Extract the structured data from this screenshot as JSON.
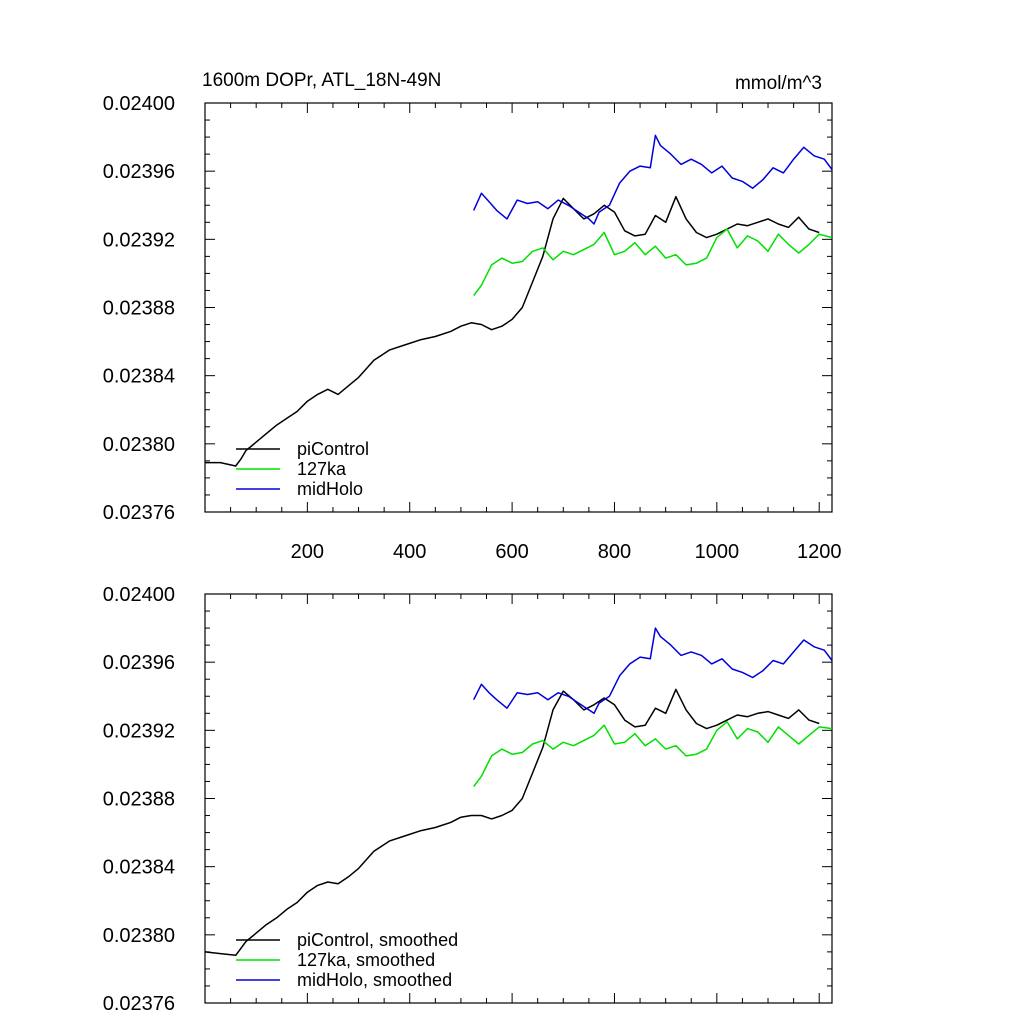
{
  "chart_data": [
    {
      "type": "line",
      "title": "1600m DOPr, ATL_18N-49N",
      "units": "mmol/m^3",
      "xlim": [
        0,
        1225
      ],
      "ylim": [
        0.02376,
        0.024
      ],
      "x_ticks": [
        200,
        400,
        600,
        800,
        1000,
        1200
      ],
      "y_ticks": [
        "0.02376",
        "0.02380",
        "0.02384",
        "0.02388",
        "0.02392",
        "0.02396",
        "0.02400"
      ],
      "show_x_tick_labels": true,
      "legend_position": "bottom-left",
      "series": [
        {
          "name": "piControl",
          "color": "#000000",
          "x": [
            0,
            30,
            60,
            70,
            80,
            100,
            120,
            140,
            160,
            180,
            200,
            220,
            240,
            260,
            280,
            300,
            330,
            360,
            390,
            420,
            450,
            480,
            500,
            520,
            540,
            560,
            580,
            600,
            620,
            640,
            660,
            680,
            700,
            720,
            740,
            760,
            780,
            800,
            820,
            840,
            860,
            880,
            900,
            920,
            940,
            960,
            980,
            1000,
            1020,
            1040,
            1060,
            1080,
            1100,
            1120,
            1140,
            1160,
            1180,
            1200
          ],
          "y": [
            0.023789,
            0.023789,
            0.023787,
            0.023791,
            0.023796,
            0.023801,
            0.023806,
            0.023811,
            0.023815,
            0.023819,
            0.023825,
            0.023829,
            0.023832,
            0.023829,
            0.023834,
            0.023839,
            0.023849,
            0.023855,
            0.023858,
            0.023861,
            0.023863,
            0.023866,
            0.023869,
            0.023871,
            0.02387,
            0.023867,
            0.023869,
            0.023873,
            0.02388,
            0.023895,
            0.02391,
            0.023932,
            0.023944,
            0.023938,
            0.023932,
            0.023935,
            0.02394,
            0.023936,
            0.023925,
            0.023922,
            0.023923,
            0.023934,
            0.02393,
            0.023945,
            0.023932,
            0.023924,
            0.023921,
            0.023923,
            0.023926,
            0.023929,
            0.023928,
            0.02393,
            0.023932,
            0.023929,
            0.023927,
            0.023933,
            0.023926,
            0.023924
          ]
        },
        {
          "name": "127ka",
          "color": "#00e000",
          "x": [
            525,
            540,
            560,
            580,
            600,
            620,
            640,
            660,
            680,
            700,
            720,
            740,
            760,
            780,
            800,
            820,
            840,
            860,
            880,
            900,
            920,
            940,
            960,
            980,
            1000,
            1020,
            1040,
            1060,
            1080,
            1100,
            1120,
            1140,
            1160,
            1180,
            1200,
            1225
          ],
          "y": [
            0.023887,
            0.023893,
            0.023905,
            0.023909,
            0.023906,
            0.023907,
            0.023913,
            0.023915,
            0.023908,
            0.023913,
            0.023911,
            0.023914,
            0.023917,
            0.023924,
            0.023911,
            0.023913,
            0.023918,
            0.023911,
            0.023916,
            0.023909,
            0.023911,
            0.023905,
            0.023906,
            0.023909,
            0.023921,
            0.023926,
            0.023915,
            0.023922,
            0.023919,
            0.023913,
            0.023923,
            0.023917,
            0.023912,
            0.023917,
            0.023923,
            0.023921
          ]
        },
        {
          "name": "midHolo",
          "color": "#0000dd",
          "x": [
            525,
            540,
            555,
            570,
            590,
            610,
            630,
            650,
            670,
            690,
            710,
            730,
            750,
            760,
            770,
            790,
            810,
            830,
            850,
            870,
            880,
            890,
            910,
            930,
            950,
            970,
            990,
            1010,
            1030,
            1050,
            1070,
            1090,
            1110,
            1130,
            1150,
            1170,
            1190,
            1210,
            1225
          ],
          "y": [
            0.023937,
            0.023947,
            0.023942,
            0.023937,
            0.023932,
            0.023943,
            0.023941,
            0.023942,
            0.023938,
            0.023943,
            0.02394,
            0.023936,
            0.023932,
            0.023929,
            0.023936,
            0.02394,
            0.023953,
            0.02396,
            0.023963,
            0.023962,
            0.023981,
            0.023975,
            0.02397,
            0.023964,
            0.023967,
            0.023964,
            0.023959,
            0.023963,
            0.023956,
            0.023954,
            0.02395,
            0.023955,
            0.023962,
            0.023959,
            0.023967,
            0.023974,
            0.023969,
            0.023967,
            0.023961
          ]
        }
      ]
    },
    {
      "type": "line",
      "title": "",
      "units": "",
      "xlim": [
        0,
        1225
      ],
      "ylim": [
        0.02376,
        0.024
      ],
      "x_ticks": [
        200,
        400,
        600,
        800,
        1000,
        1200
      ],
      "y_ticks": [
        "0.02376",
        "0.02380",
        "0.02384",
        "0.02388",
        "0.02392",
        "0.02396",
        "0.02400"
      ],
      "show_x_tick_labels": false,
      "legend_position": "bottom-left",
      "series": [
        {
          "name": "piControl, smoothed",
          "color": "#000000",
          "x": [
            0,
            30,
            60,
            70,
            80,
            100,
            120,
            140,
            160,
            180,
            200,
            220,
            240,
            260,
            280,
            300,
            330,
            360,
            390,
            420,
            450,
            480,
            500,
            520,
            540,
            560,
            580,
            600,
            620,
            640,
            660,
            680,
            700,
            720,
            740,
            760,
            780,
            800,
            820,
            840,
            860,
            880,
            900,
            920,
            940,
            960,
            980,
            1000,
            1020,
            1040,
            1060,
            1080,
            1100,
            1120,
            1140,
            1160,
            1180,
            1200
          ],
          "y": [
            0.02379,
            0.023789,
            0.023788,
            0.023792,
            0.023796,
            0.023801,
            0.023806,
            0.02381,
            0.023815,
            0.023819,
            0.023825,
            0.023829,
            0.023831,
            0.02383,
            0.023834,
            0.023839,
            0.023849,
            0.023855,
            0.023858,
            0.023861,
            0.023863,
            0.023866,
            0.023869,
            0.02387,
            0.02387,
            0.023868,
            0.02387,
            0.023873,
            0.02388,
            0.023895,
            0.02391,
            0.023932,
            0.023943,
            0.023938,
            0.023932,
            0.023935,
            0.023939,
            0.023935,
            0.023926,
            0.023922,
            0.023923,
            0.023933,
            0.02393,
            0.023944,
            0.023932,
            0.023924,
            0.023921,
            0.023923,
            0.023926,
            0.023929,
            0.023928,
            0.02393,
            0.023931,
            0.023929,
            0.023927,
            0.023932,
            0.023926,
            0.023924
          ]
        },
        {
          "name": "127ka, smoothed",
          "color": "#00e000",
          "x": [
            525,
            540,
            560,
            580,
            600,
            620,
            640,
            660,
            680,
            700,
            720,
            740,
            760,
            780,
            800,
            820,
            840,
            860,
            880,
            900,
            920,
            940,
            960,
            980,
            1000,
            1020,
            1040,
            1060,
            1080,
            1100,
            1120,
            1140,
            1160,
            1180,
            1200,
            1225
          ],
          "y": [
            0.023887,
            0.023893,
            0.023905,
            0.023909,
            0.023906,
            0.023907,
            0.023912,
            0.023914,
            0.023909,
            0.023913,
            0.023911,
            0.023914,
            0.023917,
            0.023923,
            0.023912,
            0.023913,
            0.023918,
            0.023911,
            0.023915,
            0.023909,
            0.023911,
            0.023905,
            0.023906,
            0.023909,
            0.02392,
            0.023925,
            0.023915,
            0.023921,
            0.023919,
            0.023913,
            0.023922,
            0.023917,
            0.023912,
            0.023917,
            0.023922,
            0.023921
          ]
        },
        {
          "name": "midHolo, smoothed",
          "color": "#0000dd",
          "x": [
            525,
            540,
            555,
            570,
            590,
            610,
            630,
            650,
            670,
            690,
            710,
            730,
            750,
            760,
            770,
            790,
            810,
            830,
            850,
            870,
            880,
            890,
            910,
            930,
            950,
            970,
            990,
            1010,
            1030,
            1050,
            1070,
            1090,
            1110,
            1130,
            1150,
            1170,
            1190,
            1210,
            1225
          ],
          "y": [
            0.023938,
            0.023947,
            0.023942,
            0.023938,
            0.023933,
            0.023942,
            0.023941,
            0.023942,
            0.023938,
            0.023942,
            0.02394,
            0.023936,
            0.023932,
            0.02393,
            0.023936,
            0.02394,
            0.023952,
            0.023959,
            0.023963,
            0.023962,
            0.02398,
            0.023975,
            0.02397,
            0.023964,
            0.023966,
            0.023964,
            0.023959,
            0.023962,
            0.023956,
            0.023954,
            0.023951,
            0.023955,
            0.023961,
            0.023959,
            0.023966,
            0.023973,
            0.023969,
            0.023967,
            0.023961
          ]
        }
      ]
    }
  ]
}
